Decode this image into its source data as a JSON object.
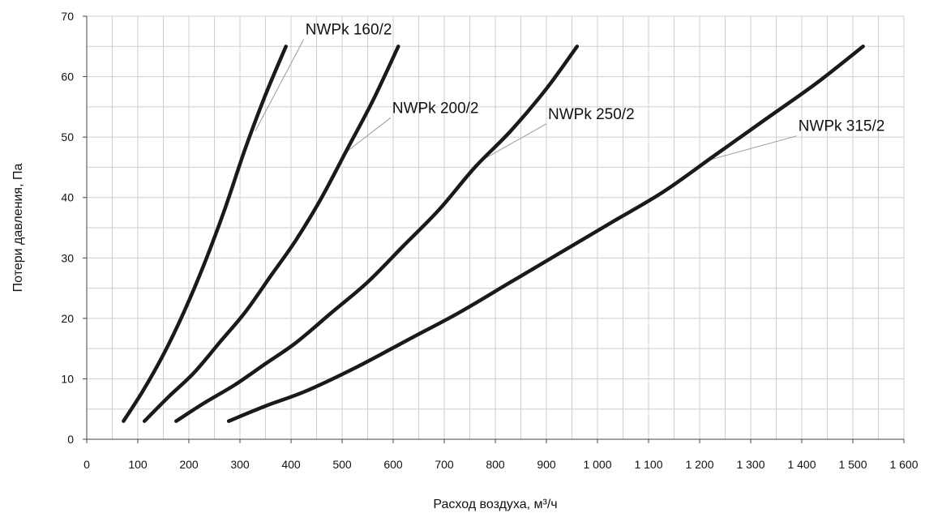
{
  "chart_data": {
    "type": "line",
    "title": "",
    "xlabel": "Расход воздуха, м³/ч",
    "ylabel": "Потери давления, Па",
    "xlim": [
      0,
      1600
    ],
    "ylim": [
      0,
      70
    ],
    "x_ticks": [
      {
        "value": 0,
        "label": "0"
      },
      {
        "value": 100,
        "label": "100"
      },
      {
        "value": 200,
        "label": "200"
      },
      {
        "value": 300,
        "label": "300"
      },
      {
        "value": 400,
        "label": "400"
      },
      {
        "value": 500,
        "label": "500"
      },
      {
        "value": 600,
        "label": "600"
      },
      {
        "value": 700,
        "label": "700"
      },
      {
        "value": 800,
        "label": "800"
      },
      {
        "value": 900,
        "label": "900"
      },
      {
        "value": 1000,
        "label": "1 000"
      },
      {
        "value": 1100,
        "label": "1 100"
      },
      {
        "value": 1200,
        "label": "1 200"
      },
      {
        "value": 1300,
        "label": "1 300"
      },
      {
        "value": 1400,
        "label": "1 400"
      },
      {
        "value": 1500,
        "label": "1 500"
      },
      {
        "value": 1600,
        "label": "1 600"
      }
    ],
    "y_ticks": [
      {
        "value": 0,
        "label": "0"
      },
      {
        "value": 10,
        "label": "10"
      },
      {
        "value": 20,
        "label": "20"
      },
      {
        "value": 30,
        "label": "30"
      },
      {
        "value": 40,
        "label": "40"
      },
      {
        "value": 50,
        "label": "50"
      },
      {
        "value": 60,
        "label": "60"
      },
      {
        "value": 70,
        "label": "70"
      }
    ],
    "grid": true,
    "series": [
      {
        "name": "NWPk 160/2",
        "points": [
          [
            72,
            3
          ],
          [
            110,
            8
          ],
          [
            150,
            14
          ],
          [
            190,
            21
          ],
          [
            230,
            29
          ],
          [
            270,
            38
          ],
          [
            310,
            48
          ],
          [
            350,
            57
          ],
          [
            390,
            65
          ]
        ],
        "label_anchor": [
          330,
          51
        ],
        "label_pos": [
          425,
          67
        ]
      },
      {
        "name": "NWPk 200/2",
        "points": [
          [
            113,
            3
          ],
          [
            160,
            7
          ],
          [
            210,
            11
          ],
          [
            260,
            16
          ],
          [
            310,
            21
          ],
          [
            360,
            27
          ],
          [
            410,
            33
          ],
          [
            460,
            40
          ],
          [
            510,
            48
          ],
          [
            560,
            56
          ],
          [
            610,
            65
          ]
        ],
        "label_anchor": [
          500,
          47
        ],
        "label_pos": [
          595,
          54
        ]
      },
      {
        "name": "NWPk 250/2",
        "points": [
          [
            175,
            3
          ],
          [
            230,
            6
          ],
          [
            290,
            9
          ],
          [
            350,
            12.5
          ],
          [
            410,
            16
          ],
          [
            480,
            21
          ],
          [
            550,
            26
          ],
          [
            620,
            32
          ],
          [
            690,
            38
          ],
          [
            760,
            45
          ],
          [
            830,
            51
          ],
          [
            900,
            58
          ],
          [
            960,
            65
          ]
        ],
        "label_anchor": [
          770,
          46
        ],
        "label_pos": [
          900,
          53
        ]
      },
      {
        "name": "NWPk 315/2",
        "points": [
          [
            278,
            3
          ],
          [
            350,
            5.5
          ],
          [
            430,
            8
          ],
          [
            530,
            12
          ],
          [
            630,
            16.5
          ],
          [
            730,
            21
          ],
          [
            830,
            26
          ],
          [
            930,
            31
          ],
          [
            1030,
            36
          ],
          [
            1130,
            41
          ],
          [
            1230,
            47
          ],
          [
            1330,
            53
          ],
          [
            1430,
            59
          ],
          [
            1520,
            65
          ]
        ],
        "label_anchor": [
          1210,
          46
        ],
        "label_pos": [
          1390,
          51
        ]
      }
    ]
  }
}
